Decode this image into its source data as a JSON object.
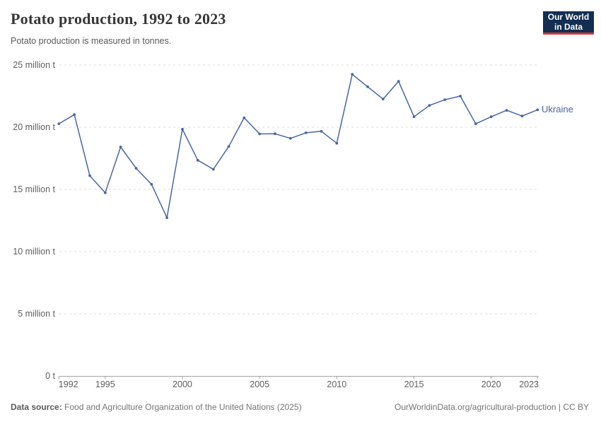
{
  "header": {
    "title": "Potato production, 1992 to 2023",
    "subtitle": "Potato production is measured in tonnes."
  },
  "logo": {
    "line1": "Our World",
    "line2": "in Data",
    "bg_color": "#132e51",
    "accent_color": "#d1383d"
  },
  "chart_data": {
    "type": "line",
    "title": "Potato production, 1992 to 2023",
    "unit": "tonnes",
    "values_unit": "million tonnes",
    "grid": "horizontal-dashed",
    "legend_position": "end-of-line-label",
    "xlim": [
      1992,
      2023
    ],
    "ylim": [
      0,
      25
    ],
    "x": [
      1992,
      1993,
      1994,
      1995,
      1996,
      1997,
      1998,
      1999,
      2000,
      2001,
      2002,
      2003,
      2004,
      2005,
      2006,
      2007,
      2008,
      2009,
      2010,
      2011,
      2012,
      2013,
      2014,
      2015,
      2016,
      2017,
      2018,
      2019,
      2020,
      2021,
      2022,
      2023
    ],
    "series": [
      {
        "name": "Ukraine",
        "color": "#4766a4",
        "values": [
          20.28,
          21.01,
          16.1,
          14.73,
          18.41,
          16.7,
          15.41,
          12.72,
          19.84,
          17.34,
          16.62,
          18.45,
          20.76,
          19.46,
          19.47,
          19.1,
          19.55,
          19.67,
          18.71,
          24.25,
          23.25,
          22.26,
          23.69,
          20.84,
          21.75,
          22.21,
          22.5,
          20.27,
          20.84,
          21.36,
          20.9,
          21.4
        ]
      }
    ],
    "yticks": [
      {
        "value": 0,
        "label": "0 t"
      },
      {
        "value": 5,
        "label": "5 million t"
      },
      {
        "value": 10,
        "label": "10 million t"
      },
      {
        "value": 15,
        "label": "15 million t"
      },
      {
        "value": 20,
        "label": "20 million t"
      },
      {
        "value": 25,
        "label": "25 million t"
      }
    ],
    "xticks": [
      1992,
      1995,
      2000,
      2005,
      2010,
      2015,
      2020,
      2023
    ],
    "colors": {
      "gridline": "#dcdcdc",
      "axis": "#a3a3a3"
    }
  },
  "footer": {
    "source_label": "Data source:",
    "source_text": " Food and Agriculture Organization of the United Nations (2025)",
    "link_text": "OurWorldinData.org/agricultural-production | CC BY"
  }
}
